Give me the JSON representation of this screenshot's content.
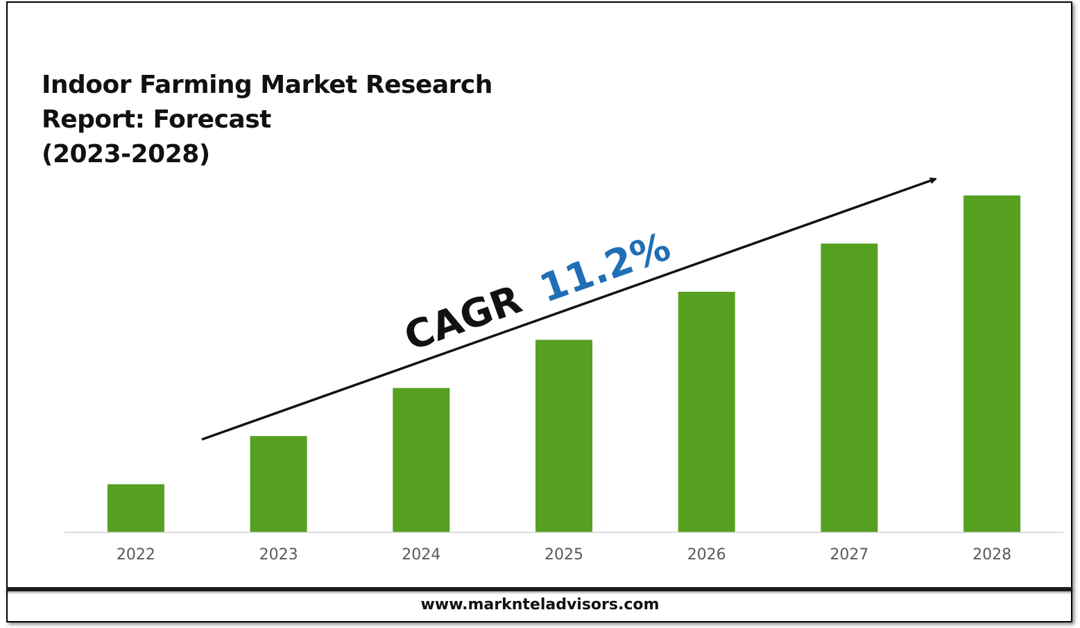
{
  "title_lines": [
    "Indoor Farming Market Research",
    "Report: Forecast",
    "(2023-2028)"
  ],
  "annotation": {
    "prefix": "CAGR",
    "value": "11.2%",
    "prefix_color": "#111111",
    "value_color": "#1f6fb5"
  },
  "footer": {
    "url": "www.marknteladvisors.com"
  },
  "colors": {
    "bar": "#55a021",
    "axis": "#d0d0d0",
    "tick_label": "#595959",
    "arrow": "#111111"
  },
  "chart_data": {
    "type": "bar",
    "categories": [
      "2022",
      "2023",
      "2024",
      "2025",
      "2026",
      "2027",
      "2028"
    ],
    "values": [
      1.0,
      2.0,
      3.0,
      4.0,
      5.0,
      6.0,
      7.0
    ],
    "title": "Indoor Farming Market Research Report: Forecast (2023-2028)",
    "xlabel": "",
    "ylabel": "",
    "ylim": [
      0,
      7.0
    ],
    "grid": false,
    "legend": "none",
    "value_scale": "relative (no y-axis printed)"
  }
}
